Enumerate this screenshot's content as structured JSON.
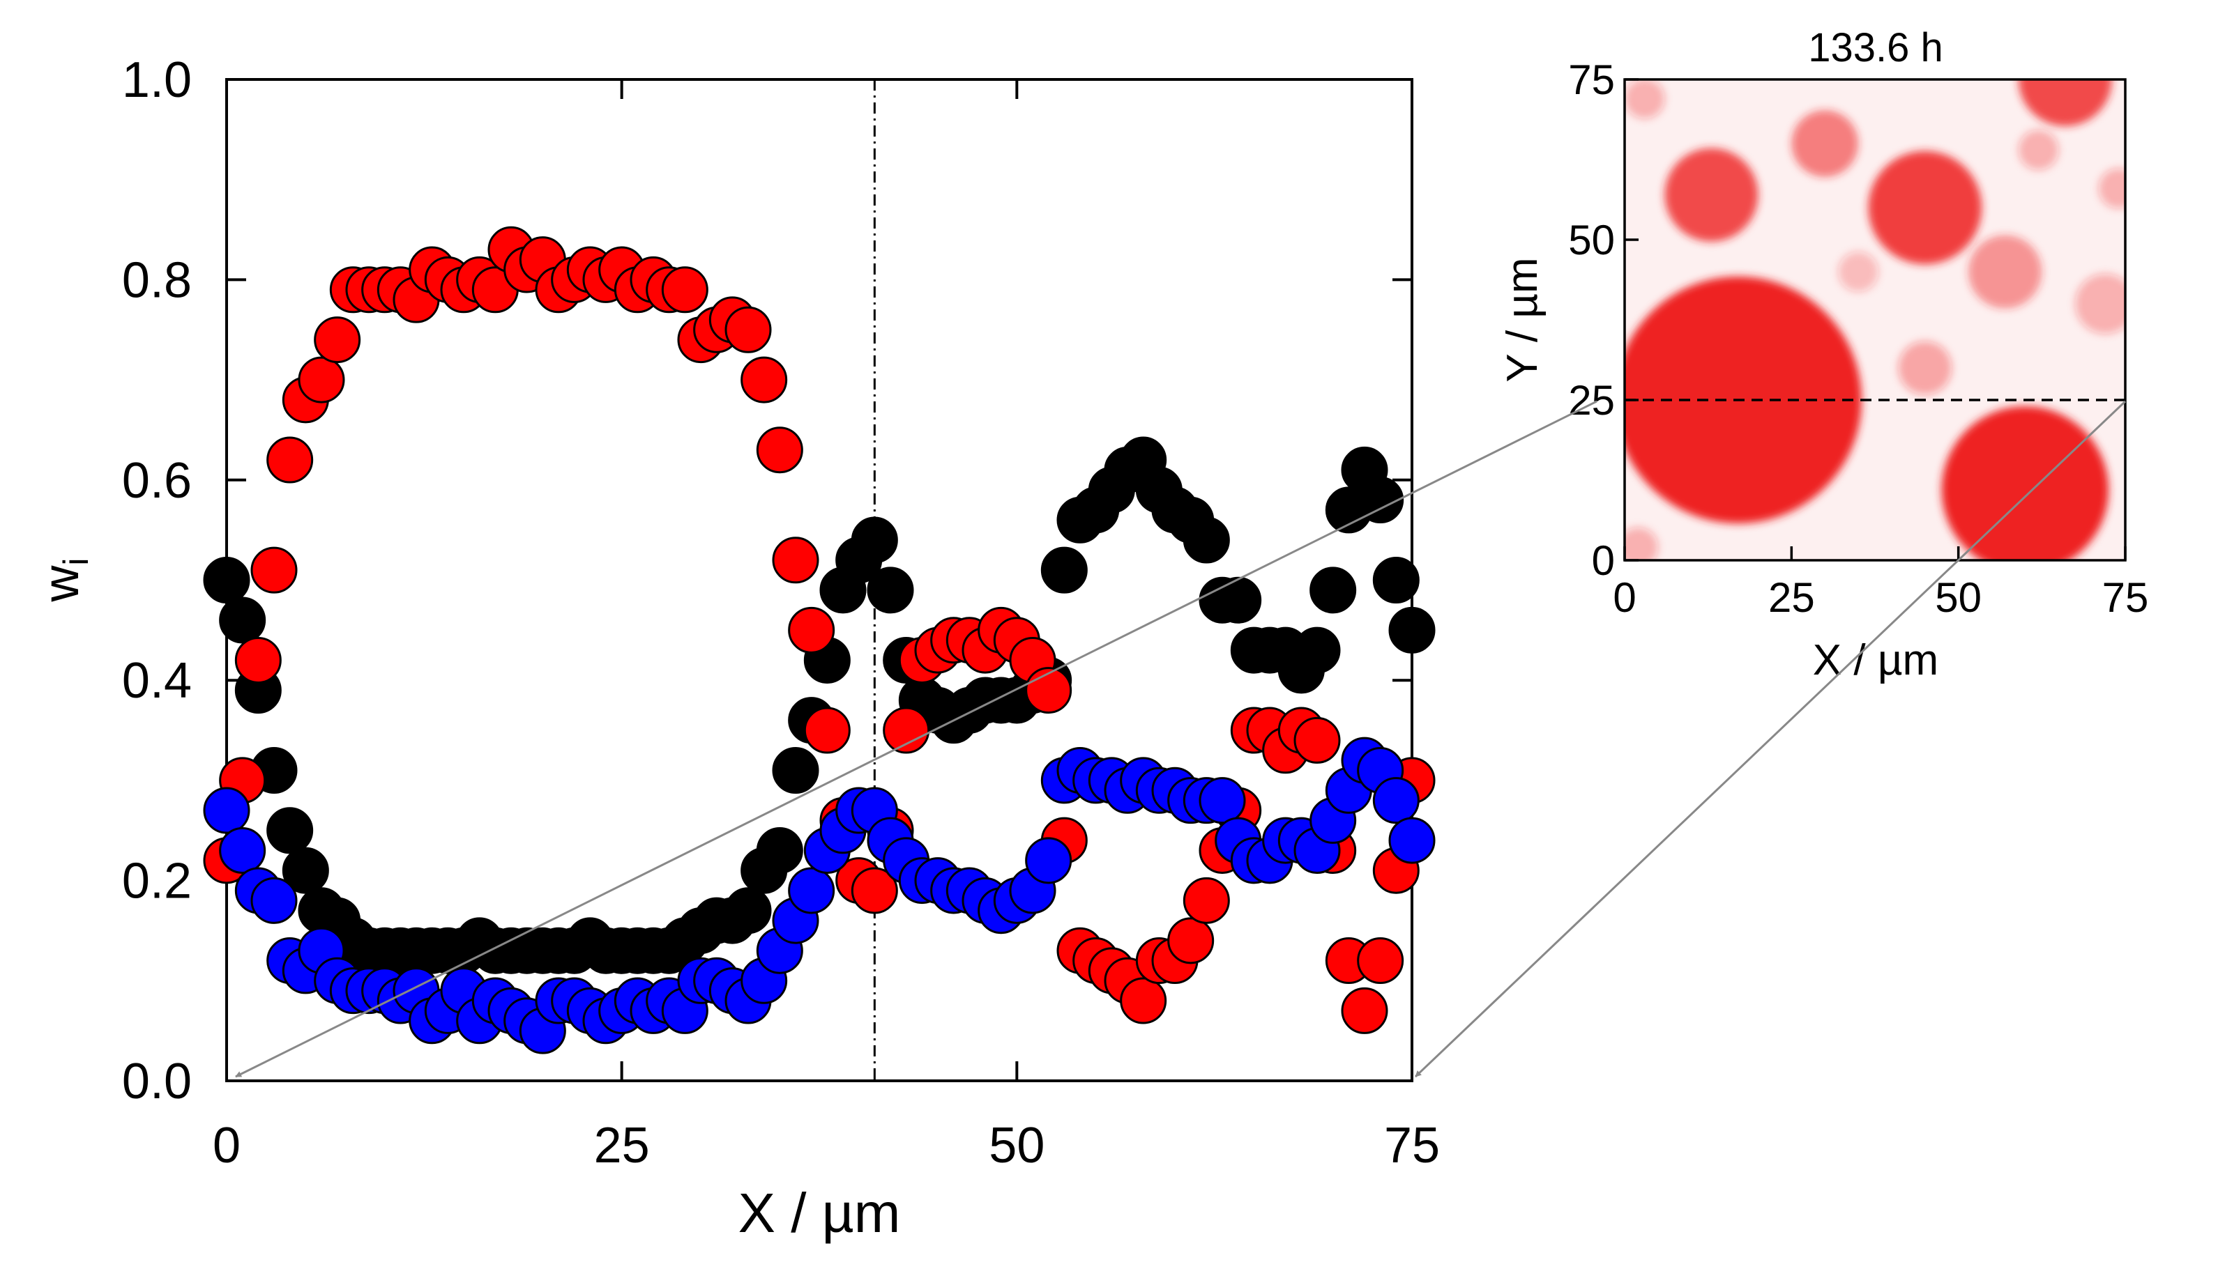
{
  "chart_data": [
    {
      "type": "scatter",
      "title": "",
      "xlabel": "X / µm",
      "ylabel": "w",
      "ylabel_subscript": "i",
      "xlim": [
        0,
        75
      ],
      "ylim": [
        0,
        1
      ],
      "xticks": [
        0,
        25,
        50,
        75
      ],
      "xtick_labels": [
        "0",
        "25",
        "50",
        "75"
      ],
      "yticks": [
        0,
        0.2,
        0.4,
        0.6,
        0.8,
        1.0
      ],
      "ytick_labels": [
        "0.0",
        "0.2",
        "0.4",
        "0.6",
        "0.8",
        "1.0"
      ],
      "grid": false,
      "reference_line_x": 41,
      "colors": {
        "black": "#000000",
        "red": "#ff0000",
        "blue": "#0000ff"
      },
      "series": [
        {
          "name": "black",
          "color": "#000000",
          "x": [
            0,
            1,
            2,
            3,
            4,
            5,
            6,
            7,
            8,
            9,
            10,
            11,
            12,
            13,
            14,
            15,
            16,
            17,
            18,
            19,
            20,
            21,
            22,
            23,
            24,
            25,
            26,
            27,
            28,
            29,
            30,
            31,
            32,
            33,
            34,
            35,
            36,
            37,
            38,
            39,
            40,
            41,
            42,
            43,
            44,
            45,
            46,
            47,
            48,
            49,
            50,
            51,
            52,
            53,
            54,
            55,
            56,
            57,
            58,
            59,
            60,
            61,
            62,
            63,
            64,
            65,
            66,
            67,
            68,
            69,
            70,
            71,
            72,
            73,
            74,
            75
          ],
          "y": [
            0.5,
            0.46,
            0.39,
            0.31,
            0.25,
            0.21,
            0.17,
            0.16,
            0.14,
            0.13,
            0.13,
            0.13,
            0.13,
            0.13,
            0.13,
            0.13,
            0.14,
            0.13,
            0.13,
            0.13,
            0.13,
            0.13,
            0.13,
            0.14,
            0.13,
            0.13,
            0.13,
            0.13,
            0.13,
            0.14,
            0.15,
            0.16,
            0.16,
            0.17,
            0.21,
            0.23,
            0.31,
            0.36,
            0.42,
            0.49,
            0.52,
            0.54,
            0.49,
            0.42,
            0.38,
            0.37,
            0.36,
            0.37,
            0.38,
            0.38,
            0.38,
            0.39,
            0.4,
            0.51,
            0.56,
            0.57,
            0.59,
            0.61,
            0.62,
            0.59,
            0.57,
            0.56,
            0.54,
            0.48,
            0.48,
            0.43,
            0.43,
            0.43,
            0.41,
            0.43,
            0.49,
            0.57,
            0.61,
            0.58,
            0.5,
            0.45
          ]
        },
        {
          "name": "red",
          "color": "#ff0000",
          "x": [
            0,
            1,
            2,
            3,
            4,
            5,
            6,
            7,
            8,
            9,
            10,
            11,
            12,
            13,
            14,
            15,
            16,
            17,
            18,
            19,
            20,
            21,
            22,
            23,
            24,
            25,
            26,
            27,
            28,
            29,
            30,
            31,
            32,
            33,
            34,
            35,
            36,
            37,
            38,
            39,
            40,
            41,
            42,
            43,
            44,
            45,
            46,
            47,
            48,
            49,
            50,
            51,
            52,
            53,
            54,
            55,
            56,
            57,
            58,
            59,
            60,
            61,
            62,
            63,
            64,
            65,
            66,
            67,
            68,
            69,
            70,
            71,
            72,
            73,
            74,
            75
          ],
          "y": [
            0.22,
            0.3,
            0.42,
            0.51,
            0.62,
            0.68,
            0.7,
            0.74,
            0.79,
            0.79,
            0.79,
            0.79,
            0.78,
            0.81,
            0.8,
            0.79,
            0.8,
            0.79,
            0.83,
            0.81,
            0.82,
            0.79,
            0.8,
            0.81,
            0.8,
            0.81,
            0.79,
            0.8,
            0.79,
            0.79,
            0.74,
            0.75,
            0.76,
            0.75,
            0.7,
            0.63,
            0.52,
            0.45,
            0.35,
            0.26,
            0.2,
            0.19,
            0.25,
            0.35,
            0.42,
            0.43,
            0.44,
            0.44,
            0.43,
            0.45,
            0.44,
            0.42,
            0.39,
            0.24,
            0.13,
            0.12,
            0.11,
            0.1,
            0.08,
            0.12,
            0.12,
            0.14,
            0.18,
            0.23,
            0.27,
            0.35,
            0.35,
            0.33,
            0.35,
            0.34,
            0.23,
            0.12,
            0.07,
            0.12,
            0.21,
            0.3
          ]
        },
        {
          "name": "blue",
          "color": "#0000ff",
          "x": [
            0,
            1,
            2,
            3,
            4,
            5,
            6,
            7,
            8,
            9,
            10,
            11,
            12,
            13,
            14,
            15,
            16,
            17,
            18,
            19,
            20,
            21,
            22,
            23,
            24,
            25,
            26,
            27,
            28,
            29,
            30,
            31,
            32,
            33,
            34,
            35,
            36,
            37,
            38,
            39,
            40,
            41,
            42,
            43,
            44,
            45,
            46,
            47,
            48,
            49,
            50,
            51,
            52,
            53,
            54,
            55,
            56,
            57,
            58,
            59,
            60,
            61,
            62,
            63,
            64,
            65,
            66,
            67,
            68,
            69,
            70,
            71,
            72,
            73,
            74,
            75
          ],
          "y": [
            0.27,
            0.23,
            0.19,
            0.18,
            0.12,
            0.11,
            0.13,
            0.1,
            0.09,
            0.09,
            0.09,
            0.08,
            0.09,
            0.06,
            0.07,
            0.09,
            0.06,
            0.08,
            0.07,
            0.06,
            0.05,
            0.08,
            0.08,
            0.07,
            0.06,
            0.07,
            0.08,
            0.07,
            0.08,
            0.07,
            0.1,
            0.1,
            0.09,
            0.08,
            0.1,
            0.13,
            0.16,
            0.19,
            0.23,
            0.25,
            0.27,
            0.27,
            0.24,
            0.22,
            0.2,
            0.2,
            0.19,
            0.19,
            0.18,
            0.17,
            0.18,
            0.19,
            0.22,
            0.3,
            0.31,
            0.3,
            0.3,
            0.29,
            0.3,
            0.29,
            0.29,
            0.28,
            0.28,
            0.28,
            0.24,
            0.22,
            0.22,
            0.24,
            0.24,
            0.23,
            0.26,
            0.29,
            0.32,
            0.31,
            0.28,
            0.24
          ]
        }
      ]
    },
    {
      "type": "heatmap",
      "title": "133.6 h",
      "xlabel": "X / µm",
      "ylabel": "Y / µm",
      "xlim": [
        0,
        75
      ],
      "ylim": [
        0,
        75
      ],
      "xticks": [
        0,
        25,
        50,
        75
      ],
      "xtick_labels": [
        "0",
        "25",
        "50",
        "75"
      ],
      "yticks": [
        0,
        25,
        50,
        75
      ],
      "ytick_labels": [
        "0",
        "25",
        "50",
        "75"
      ],
      "cut_line_y": 25,
      "colors": {
        "background": "#fdf0f0",
        "domain": "#ee2222"
      },
      "domains": [
        {
          "cx": 17,
          "cy": 25,
          "r": 18.5,
          "alpha": 1.0
        },
        {
          "cx": 60,
          "cy": 11,
          "r": 12.5,
          "alpha": 1.0
        },
        {
          "cx": 45,
          "cy": 55,
          "r": 8.5,
          "alpha": 0.85
        },
        {
          "cx": 13,
          "cy": 57,
          "r": 7,
          "alpha": 0.8
        },
        {
          "cx": 66,
          "cy": 75,
          "r": 7,
          "alpha": 0.8
        },
        {
          "cx": 30,
          "cy": 65,
          "r": 5,
          "alpha": 0.55
        },
        {
          "cx": 57,
          "cy": 45,
          "r": 5.5,
          "alpha": 0.45
        },
        {
          "cx": 45,
          "cy": 30,
          "r": 4,
          "alpha": 0.35
        },
        {
          "cx": 72,
          "cy": 40,
          "r": 4.5,
          "alpha": 0.3
        },
        {
          "cx": 62,
          "cy": 64,
          "r": 3,
          "alpha": 0.3
        },
        {
          "cx": 74,
          "cy": 58,
          "r": 3,
          "alpha": 0.3
        },
        {
          "cx": 35,
          "cy": 45,
          "r": 3,
          "alpha": 0.25
        },
        {
          "cx": 3,
          "cy": 72,
          "r": 3,
          "alpha": 0.3
        },
        {
          "cx": 2,
          "cy": 2,
          "r": 3,
          "alpha": 0.3
        }
      ]
    }
  ]
}
